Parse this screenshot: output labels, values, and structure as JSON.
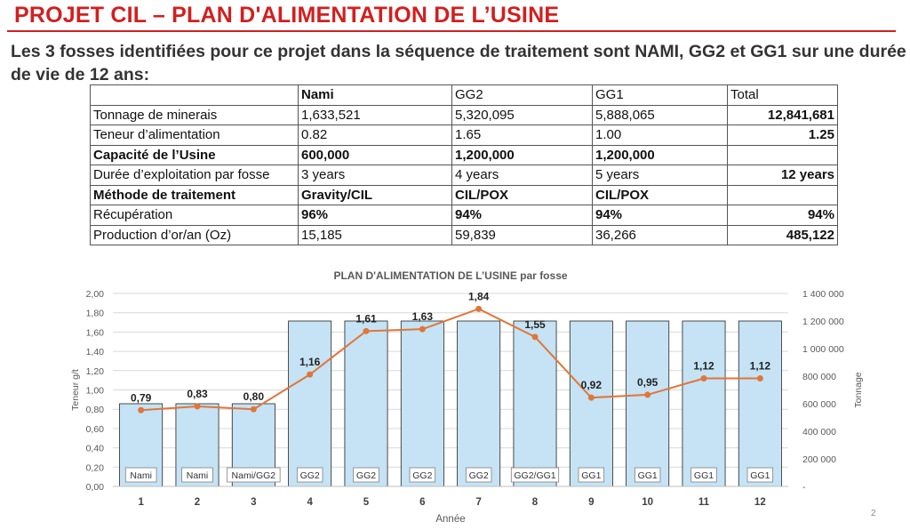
{
  "slide": {
    "title": "PROJET CIL – PLAN D'ALIMENTATION DE L’USINE",
    "intro": "Les 3 fosses identifiées pour ce projet dans la séquence de traitement sont NAMI, GG2 et GG1 sur une durée de vie de 12 ans:",
    "page_number": "2"
  },
  "table": {
    "headers": [
      "",
      "Nami",
      "GG2",
      "GG1",
      "Total"
    ],
    "rows": [
      {
        "cells": [
          "Tonnage de minerais",
          "1,633,521",
          "5,320,095",
          "5,888,065",
          "12,841,681"
        ],
        "bold": [
          false,
          false,
          false,
          false,
          true
        ]
      },
      {
        "cells": [
          "Teneur d’alimentation",
          "0.82",
          "1.65",
          "1.00",
          "1.25"
        ],
        "bold": [
          false,
          false,
          false,
          false,
          true
        ]
      },
      {
        "cells": [
          "Capacité de l’Usine",
          "600,000",
          "1,200,000",
          "1,200,000",
          ""
        ],
        "bold": [
          true,
          true,
          true,
          true,
          false
        ]
      },
      {
        "cells": [
          "Durée d’exploitation par fosse",
          "3 years",
          "4 years",
          " 5 years",
          "12 years"
        ],
        "bold": [
          false,
          false,
          false,
          false,
          true
        ]
      },
      {
        "cells": [
          "Méthode de traitement",
          "Gravity/CIL",
          "CIL/POX",
          "CIL/POX",
          ""
        ],
        "bold": [
          true,
          true,
          true,
          true,
          false
        ]
      },
      {
        "cells": [
          "Récupération",
          "96%",
          "94%",
          "94%",
          "94%"
        ],
        "bold": [
          false,
          true,
          true,
          true,
          true
        ]
      },
      {
        "cells": [
          "Production d’or/an (Oz)",
          "15,185",
          "59,839",
          "36,266",
          "485,122"
        ],
        "bold": [
          false,
          false,
          false,
          false,
          true
        ]
      }
    ]
  },
  "chart_data": {
    "type": "bar",
    "title": "PLAN D'ALIMENTATION DE L’USINE par fosse",
    "xlabel": "Année",
    "ylabel": "Teneur g/t",
    "y2label": "Tonnage",
    "categories": [
      "1",
      "2",
      "3",
      "4",
      "5",
      "6",
      "7",
      "8",
      "9",
      "10",
      "11",
      "12"
    ],
    "ylim": [
      0,
      2
    ],
    "y_ticks": [
      "0,00",
      "0,20",
      "0,40",
      "0,60",
      "0,80",
      "1,00",
      "1,20",
      "1,40",
      "1,60",
      "1,80",
      "2,00"
    ],
    "y2lim": [
      0,
      1400000
    ],
    "y2_ticks": [
      "-",
      "200 000",
      "400 000",
      "600 000",
      "800 000",
      "1 000 000",
      "1 200 000",
      "1 400 000"
    ],
    "series": [
      {
        "type": "bar",
        "axis": "right",
        "values": [
          600000,
          600000,
          600000,
          1200000,
          1200000,
          1200000,
          1200000,
          1200000,
          1200000,
          1200000,
          1200000,
          1200000
        ],
        "labels": [
          "Nami",
          "Nami",
          "Nami/GG2",
          "GG2",
          "GG2",
          "GG2",
          "GG2",
          "GG2/GG1",
          "GG1",
          "GG1",
          "GG1",
          "GG1"
        ]
      },
      {
        "type": "line",
        "axis": "left",
        "values": [
          0.79,
          0.83,
          0.8,
          1.16,
          1.61,
          1.63,
          1.84,
          1.55,
          0.92,
          0.95,
          1.12,
          1.12
        ],
        "labels": [
          "0,79",
          "0,83",
          "0,80",
          "1,16",
          "1,61",
          "1,63",
          "1,84",
          "1,55",
          "0,92",
          "0,95",
          "1,12",
          "1,12"
        ]
      }
    ],
    "colors": {
      "bar_fill": "#c5e3f4",
      "bar_stroke": "#222222",
      "line": "#e0763a",
      "grid": "#d9d9d9"
    }
  }
}
